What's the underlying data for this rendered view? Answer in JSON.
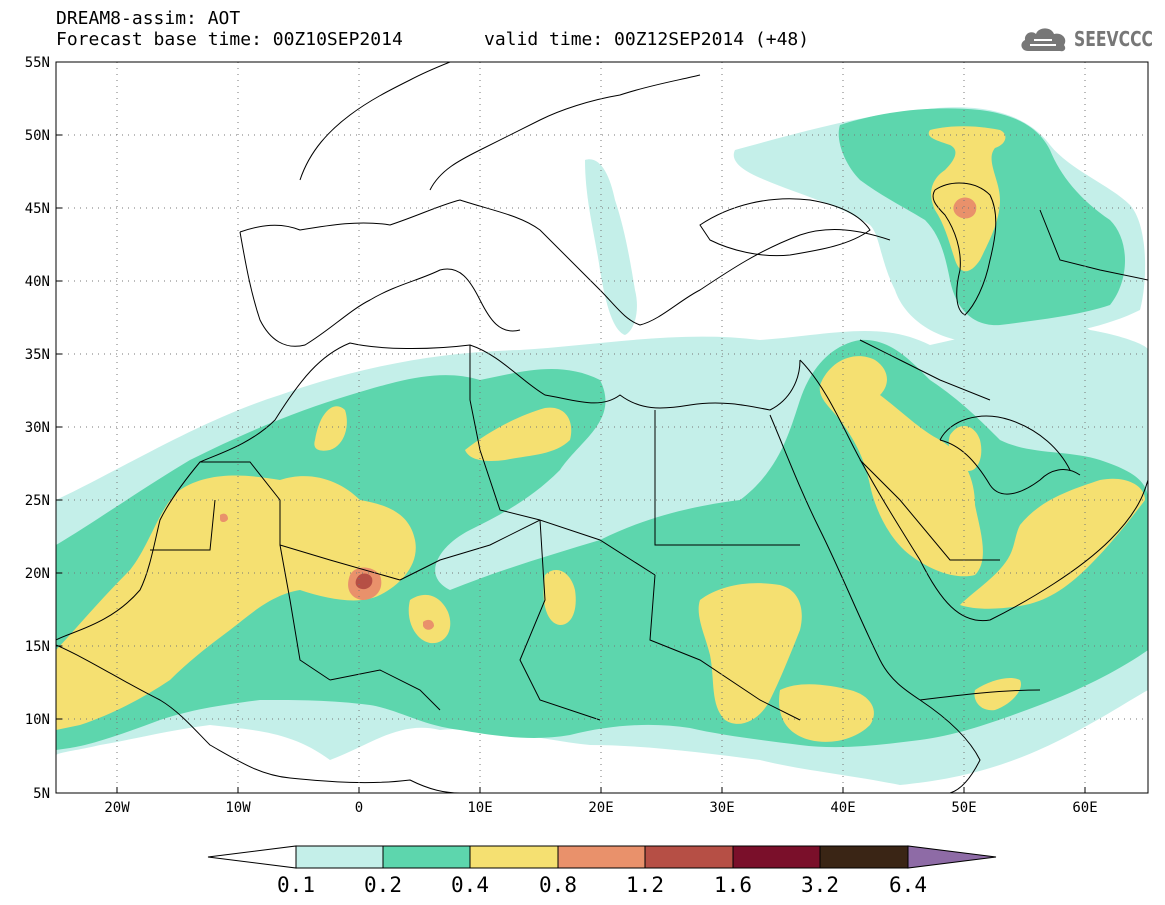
{
  "header": {
    "line1": "DREAM8-assim: AOT",
    "line2a": "Forecast base time: 00Z10SEP2014",
    "line2b": "valid time: 00Z12SEP2014 (+48)",
    "logo_text": "SEEVCCC",
    "logo_icon": "cloud-icon"
  },
  "axes": {
    "lat_labels": [
      "55N",
      "50N",
      "45N",
      "40N",
      "35N",
      "30N",
      "25N",
      "20N",
      "15N",
      "10N",
      "5N"
    ],
    "lon_labels": [
      "20W",
      "10W",
      "0",
      "10E",
      "20E",
      "30E",
      "40E",
      "50E",
      "60E"
    ]
  },
  "colorbar": {
    "labels": [
      "0.1",
      "0.2",
      "0.4",
      "0.8",
      "1.2",
      "1.6",
      "3.2",
      "6.4"
    ],
    "colors": [
      "#ffffff",
      "#c4efe9",
      "#5dd6ad",
      "#f5e071",
      "#e9916b",
      "#b64f45",
      "#7a0f2a",
      "#3a2515",
      "#8e6ba6"
    ]
  },
  "map_colors": {
    "aot_0_1": "#c4efe9",
    "aot_0_2": "#5dd6ad",
    "aot_0_4": "#f5e071",
    "aot_0_8": "#e9916b",
    "aot_1_2": "#b64f45"
  }
}
